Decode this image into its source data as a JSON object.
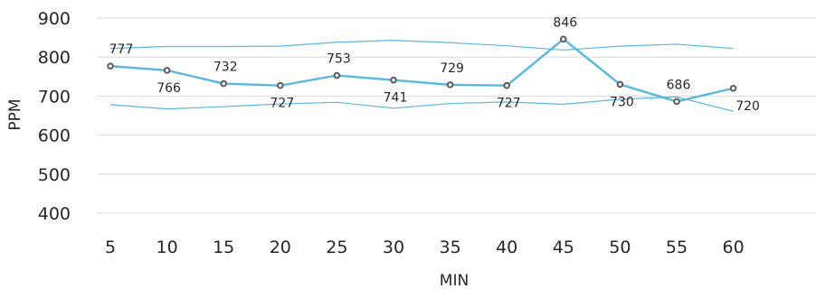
{
  "chart_data": {
    "type": "line",
    "xlabel": "MIN",
    "ylabel": "PPM",
    "ylim": [
      400,
      900
    ],
    "yticks": [
      400,
      500,
      600,
      700,
      800,
      900
    ],
    "categories": [
      "5",
      "10",
      "15",
      "20",
      "25",
      "30",
      "35",
      "40",
      "45",
      "50",
      "55",
      "60"
    ],
    "grid": true,
    "legend": "none",
    "series": [
      {
        "role": "main",
        "values": [
          777,
          766,
          732,
          727,
          753,
          741,
          729,
          727,
          846,
          730,
          686,
          720
        ],
        "data_labels": [
          "777",
          "766",
          "732",
          "727",
          "753",
          "741",
          "729",
          "727",
          "846",
          "730",
          "686",
          "720"
        ],
        "color": "#5bb7dc",
        "marker_color": "#595959"
      },
      {
        "role": "upper-band",
        "values": [
          822,
          827,
          827,
          828,
          838,
          843,
          837,
          829,
          818,
          828,
          833,
          822
        ],
        "color": "#5bb7dc"
      },
      {
        "role": "lower-band",
        "values": [
          678,
          667,
          673,
          680,
          684,
          669,
          681,
          685,
          679,
          692,
          698,
          661
        ],
        "color": "#5bb7dc"
      }
    ]
  }
}
